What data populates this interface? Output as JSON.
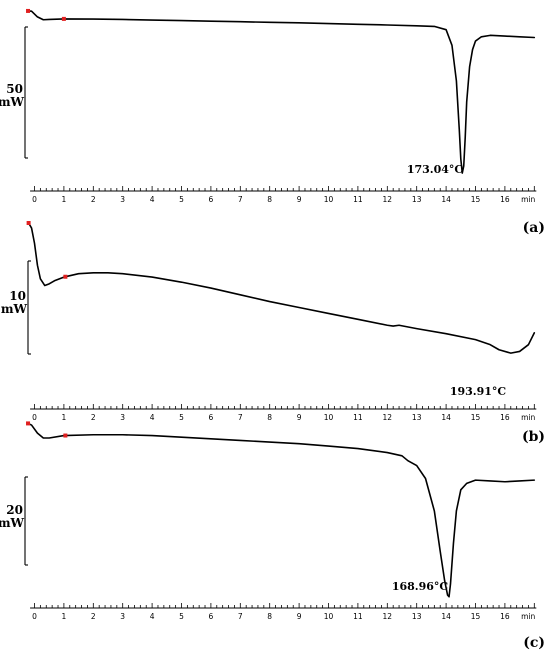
{
  "chart_data": [
    {
      "type": "line",
      "panel_label": "(a)",
      "xlabel": "min",
      "xlim": [
        0,
        17
      ],
      "x_ticks": [
        0,
        1,
        2,
        3,
        4,
        5,
        6,
        7,
        8,
        9,
        10,
        11,
        12,
        13,
        14,
        15,
        16
      ],
      "scale_bar": {
        "value": "50",
        "unit": "mW"
      },
      "peak_annotation": "173.04°C",
      "markers_x": [
        -0.22,
        1.0
      ],
      "series": [
        {
          "x": [
            -0.22,
            -0.1,
            0.1,
            0.3,
            0.5,
            1.0,
            2,
            3,
            4,
            5,
            6,
            7,
            8,
            9,
            10,
            11,
            12,
            13,
            13.6,
            14.0,
            14.2,
            14.35,
            14.45,
            14.5,
            14.55,
            14.6,
            14.65,
            14.7,
            14.8,
            14.9,
            15.0,
            15.2,
            15.5,
            16,
            16.5,
            17
          ],
          "y": [
            9.2,
            9.0,
            5.0,
            3.0,
            3.2,
            3.6,
            3.5,
            3.2,
            2.8,
            2.4,
            2.0,
            1.6,
            1.2,
            0.8,
            0.3,
            -0.2,
            -0.7,
            -1.3,
            -1.7,
            -4,
            -15,
            -40,
            -75,
            -95,
            -105,
            -100,
            -80,
            -55,
            -30,
            -18,
            -12,
            -9,
            -8,
            -8.5,
            -9,
            -9.5
          ]
        }
      ]
    },
    {
      "type": "line",
      "panel_label": "(b)",
      "xlabel": "min",
      "xlim": [
        0,
        17
      ],
      "x_ticks": [
        0,
        1,
        2,
        3,
        4,
        5,
        6,
        7,
        8,
        9,
        10,
        11,
        12,
        13,
        14,
        15,
        16
      ],
      "scale_bar": {
        "value": "10",
        "unit": "mW"
      },
      "peak_annotation": "193.91°C",
      "markers_x": [
        -0.2,
        1.05
      ],
      "series": [
        {
          "x": [
            -0.2,
            -0.1,
            0,
            0.1,
            0.2,
            0.35,
            0.5,
            0.7,
            1.0,
            1.5,
            2,
            2.5,
            3,
            4,
            5,
            6,
            7,
            8,
            9,
            10,
            11,
            12,
            12.2,
            12.4,
            13,
            14,
            15,
            15.5,
            15.8,
            16.2,
            16.5,
            16.8,
            17
          ],
          "y": [
            0,
            -3,
            -12,
            -25,
            -33,
            -37,
            -36,
            -34,
            -32,
            -30,
            -29.5,
            -29.5,
            -30,
            -32,
            -35,
            -38.5,
            -42.5,
            -46.5,
            -50,
            -53.5,
            -57,
            -60.5,
            -61,
            -60.5,
            -62.5,
            -65.5,
            -69,
            -72,
            -75,
            -77,
            -76,
            -72,
            -65
          ]
        }
      ]
    },
    {
      "type": "line",
      "panel_label": "(c)",
      "xlabel": "min",
      "xlim": [
        0,
        17
      ],
      "x_ticks": [
        0,
        1,
        2,
        3,
        4,
        5,
        6,
        7,
        8,
        9,
        10,
        11,
        12,
        13,
        14,
        15,
        16
      ],
      "scale_bar": {
        "value": "20",
        "unit": "mW"
      },
      "peak_annotation": "168.96°C",
      "markers_x": [
        -0.22,
        1.05
      ],
      "series": [
        {
          "x": [
            -0.22,
            -0.1,
            0.1,
            0.3,
            0.5,
            1.0,
            2,
            3,
            4,
            5,
            6,
            7,
            8,
            9,
            10,
            11,
            12,
            12.5,
            12.7,
            13.0,
            13.3,
            13.6,
            13.8,
            13.95,
            14.05,
            14.1,
            14.15,
            14.25,
            14.35,
            14.5,
            14.7,
            15.0,
            15.5,
            16,
            16.5,
            17
          ],
          "y": [
            9,
            8,
            3,
            0,
            0,
            1.5,
            2,
            2,
            1.5,
            0.5,
            -0.5,
            -1.5,
            -2.5,
            -3.5,
            -5,
            -6.5,
            -9,
            -11,
            -14,
            -17,
            -25,
            -45,
            -70,
            -88,
            -97,
            -98,
            -90,
            -65,
            -45,
            -32,
            -28,
            -26,
            -26.5,
            -27,
            -26.5,
            -26
          ]
        }
      ]
    }
  ]
}
